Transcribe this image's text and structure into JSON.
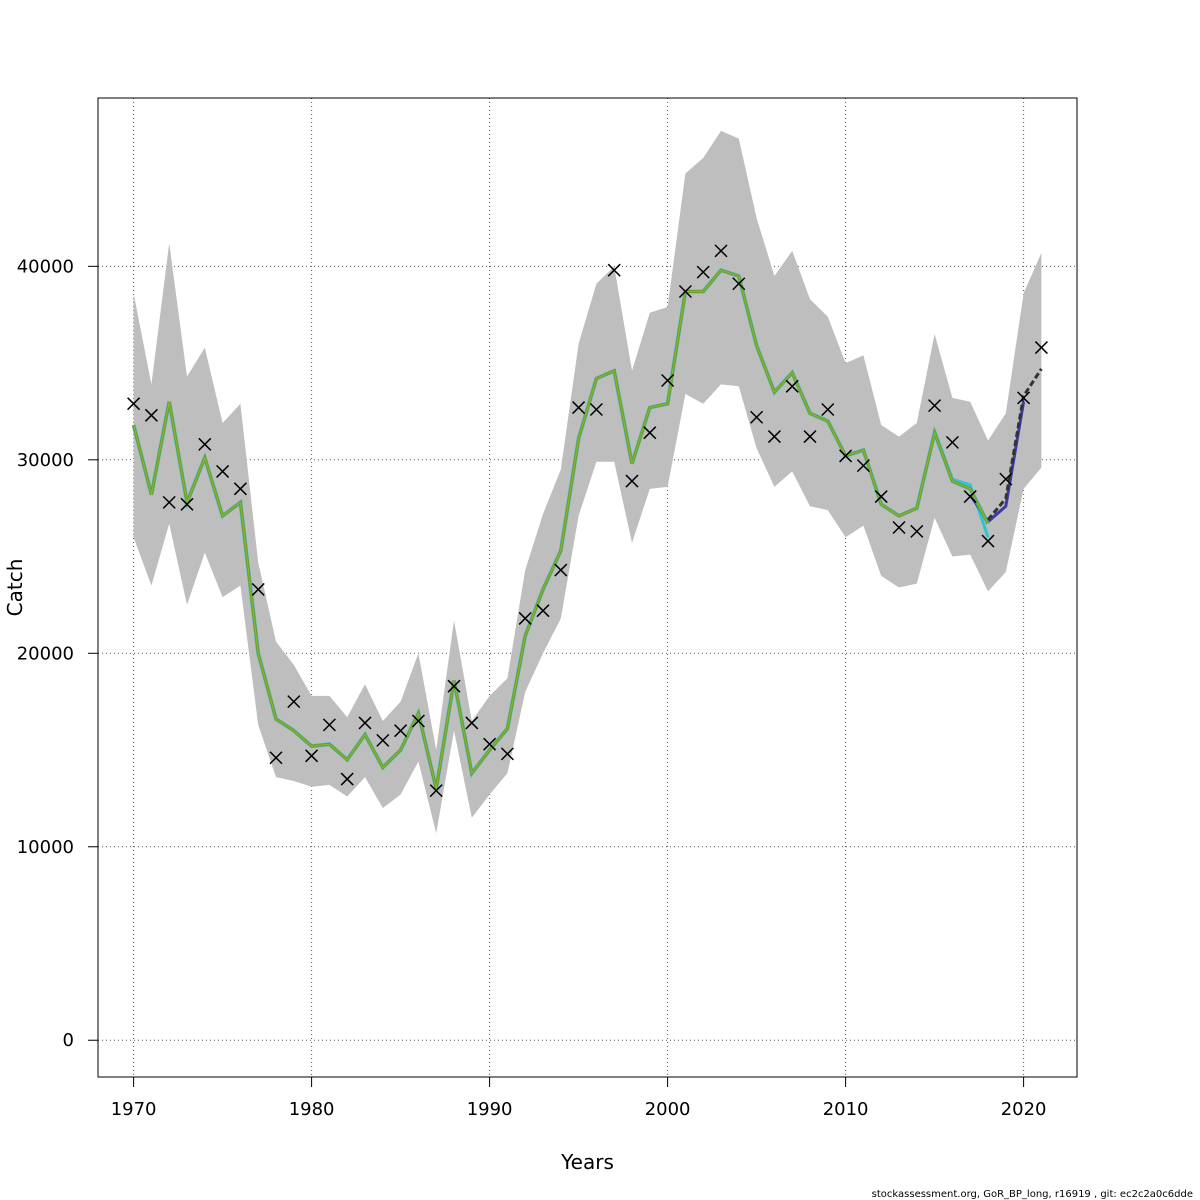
{
  "chart_data": {
    "type": "line",
    "title": "",
    "xlabel": "Years",
    "ylabel": "Catch",
    "xlim": [
      1968,
      2023
    ],
    "ylim": [
      -1900,
      48700
    ],
    "grid": true,
    "x_ticks": [
      1970,
      1980,
      1990,
      2000,
      2010,
      2020
    ],
    "y_ticks": [
      0,
      10000,
      20000,
      30000,
      40000
    ],
    "x_tick_labels": [
      "1970",
      "1980",
      "1990",
      "2000",
      "2010",
      "2020"
    ],
    "y_tick_labels": [
      "0",
      "10000",
      "20000",
      "30000",
      "40000"
    ],
    "colors": {
      "band": "#bebebe",
      "estimate": "#6b9a2c",
      "estimate_core": "#8ab33a",
      "retro_a": "#2ec4d6",
      "retro_b": "#3a3aa8",
      "forecast": "#333333",
      "observed": "#000000",
      "grid": "#555555"
    },
    "years": [
      1970,
      1971,
      1972,
      1973,
      1974,
      1975,
      1976,
      1977,
      1978,
      1979,
      1980,
      1981,
      1982,
      1983,
      1984,
      1985,
      1986,
      1987,
      1988,
      1989,
      1990,
      1991,
      1992,
      1993,
      1994,
      1995,
      1996,
      1997,
      1998,
      1999,
      2000,
      2001,
      2002,
      2003,
      2004,
      2005,
      2006,
      2007,
      2008,
      2009,
      2010,
      2011,
      2012,
      2013,
      2014,
      2015,
      2016,
      2017,
      2018
    ],
    "estimate": [
      31800,
      28200,
      33000,
      27800,
      30100,
      27100,
      27800,
      20000,
      16600,
      16000,
      15200,
      15300,
      14500,
      15800,
      14100,
      15000,
      16900,
      13000,
      18600,
      13800,
      15000,
      16100,
      20900,
      23300,
      25300,
      31100,
      34200,
      34600,
      29800,
      32700,
      32900,
      38700,
      38700,
      39800,
      39500,
      35900,
      33500,
      34500,
      32400,
      32000,
      30200,
      30500,
      27700,
      27100,
      27500,
      31400,
      28900,
      28500,
      26700
    ],
    "band_upper": [
      38600,
      33900,
      41200,
      34300,
      35800,
      31900,
      32900,
      24700,
      20600,
      19400,
      17800,
      17800,
      16700,
      18400,
      16500,
      17500,
      20000,
      15000,
      21700,
      16500,
      17800,
      18700,
      24300,
      27200,
      29500,
      36000,
      39100,
      40000,
      34600,
      37600,
      37900,
      44800,
      45600,
      47000,
      46600,
      42500,
      39500,
      40800,
      38300,
      37400,
      35000,
      35400,
      31800,
      31200,
      31900,
      36500,
      33200,
      33000,
      31000
    ],
    "band_lower": [
      26000,
      23500,
      26700,
      22500,
      25200,
      22900,
      23500,
      16300,
      13600,
      13400,
      13100,
      13200,
      12600,
      13600,
      12000,
      12700,
      14400,
      10700,
      16000,
      11500,
      12700,
      13800,
      18000,
      20000,
      21800,
      27100,
      29900,
      29900,
      25700,
      28500,
      28600,
      33400,
      32900,
      33900,
      33800,
      30600,
      28600,
      29400,
      27600,
      27400,
      26000,
      26600,
      24000,
      23400,
      23600,
      27000,
      25000,
      25100,
      23200
    ],
    "retro_peel_1": {
      "years": [
        2015,
        2016,
        2017,
        2018
      ],
      "values": [
        31500,
        29000,
        28700,
        26000
      ]
    },
    "retro_peel_2": {
      "years": [
        2017,
        2018,
        2019,
        2020
      ],
      "values": [
        28200,
        26800,
        27600,
        33000
      ]
    },
    "forecast": {
      "years": [
        2018,
        2019,
        2020,
        2021
      ],
      "values": [
        26900,
        28000,
        33300,
        34700
      ],
      "band_upper": [
        31000,
        32400,
        38600,
        40700
      ],
      "band_lower": [
        23200,
        24200,
        28500,
        29600
      ]
    },
    "observed_years": [
      1970,
      1971,
      1972,
      1973,
      1974,
      1975,
      1976,
      1977,
      1978,
      1979,
      1980,
      1981,
      1982,
      1983,
      1984,
      1985,
      1986,
      1987,
      1988,
      1989,
      1990,
      1991,
      1992,
      1993,
      1994,
      1995,
      1996,
      1997,
      1998,
      1999,
      2000,
      2001,
      2002,
      2003,
      2004,
      2005,
      2006,
      2007,
      2008,
      2009,
      2010,
      2011,
      2012,
      2013,
      2014,
      2015,
      2016,
      2017,
      2018,
      2019,
      2020,
      2021
    ],
    "observed": [
      32900,
      32300,
      27800,
      27700,
      30800,
      29400,
      28500,
      23300,
      14600,
      17500,
      14700,
      16300,
      13500,
      16400,
      15500,
      16000,
      16500,
      12900,
      18300,
      16400,
      15300,
      14800,
      21800,
      22200,
      24300,
      32700,
      32600,
      39800,
      28900,
      31400,
      34100,
      38700,
      39700,
      40800,
      39100,
      32200,
      31200,
      33800,
      31200,
      32600,
      30200,
      29700,
      28100,
      26500,
      26300,
      32800,
      30900,
      28100,
      25800,
      29000,
      33200,
      35800
    ]
  },
  "footer": {
    "text": "stockassessment.org, GoR_BP_long, r16919 , git: ec2c2a0c6dde"
  }
}
